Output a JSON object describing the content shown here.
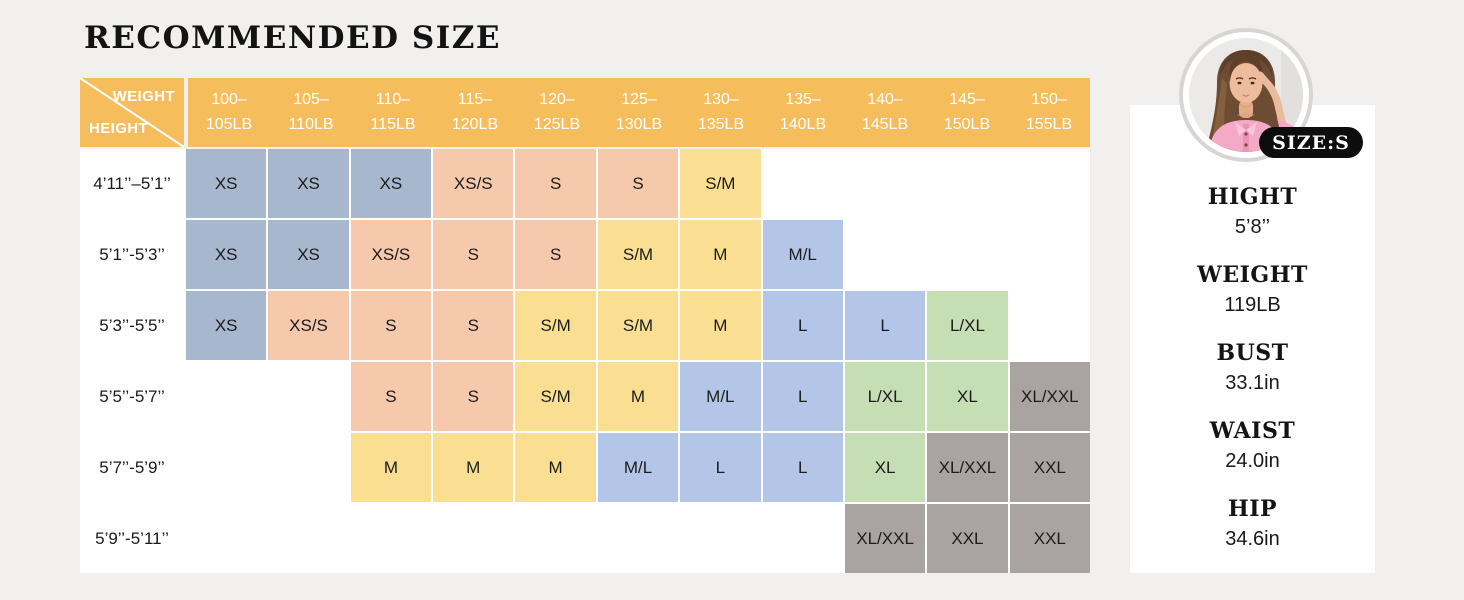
{
  "page": {
    "title": "RECOMMENDED SIZE"
  },
  "palette": {
    "page_bg": "#F1F0EE",
    "header_orange": "#F6BD5C",
    "blue": "#A7B8CE",
    "peach": "#F6C9AC",
    "yellow": "#FADF92",
    "periwinkle": "#B4C6E8",
    "green": "#C5DEB4",
    "gray": "#A9A4A1",
    "badge_black": "#0D0D0D",
    "card_white": "#FFFFFF"
  },
  "chart_data": {
    "type": "table",
    "title": "RECOMMENDED SIZE",
    "column_axis": "WEIGHT",
    "row_axis": "HEIGHT",
    "columns": [
      "100–105LB",
      "105–110LB",
      "110–115LB",
      "115–120LB",
      "120–125LB",
      "125–130LB",
      "130–135LB",
      "135–140LB",
      "140–145LB",
      "145–150LB",
      "150–155LB"
    ],
    "rows": [
      "4’11’’–5’1’’",
      "5’1’’-5’3’’",
      "5’3’’-5’5’’",
      "5’5’’-5’7’’",
      "5’7’’-5’9’’",
      "5’9’’-5’11’’"
    ],
    "cells": [
      [
        {
          "size": "XS",
          "color": "blue"
        },
        {
          "size": "XS",
          "color": "blue"
        },
        {
          "size": "XS",
          "color": "blue"
        },
        {
          "size": "XS/S",
          "color": "peach"
        },
        {
          "size": "S",
          "color": "peach"
        },
        {
          "size": "S",
          "color": "peach"
        },
        {
          "size": "S/M",
          "color": "yellow"
        },
        null,
        null,
        null,
        null
      ],
      [
        {
          "size": "XS",
          "color": "blue"
        },
        {
          "size": "XS",
          "color": "blue"
        },
        {
          "size": "XS/S",
          "color": "peach"
        },
        {
          "size": "S",
          "color": "peach"
        },
        {
          "size": "S",
          "color": "peach"
        },
        {
          "size": "S/M",
          "color": "yellow"
        },
        {
          "size": "M",
          "color": "yellow"
        },
        {
          "size": "M/L",
          "color": "periwinkle"
        },
        null,
        null,
        null
      ],
      [
        {
          "size": "XS",
          "color": "blue"
        },
        {
          "size": "XS/S",
          "color": "peach"
        },
        {
          "size": "S",
          "color": "peach"
        },
        {
          "size": "S",
          "color": "peach"
        },
        {
          "size": "S/M",
          "color": "yellow"
        },
        {
          "size": "S/M",
          "color": "yellow"
        },
        {
          "size": "M",
          "color": "yellow"
        },
        {
          "size": "L",
          "color": "periwinkle"
        },
        {
          "size": "L",
          "color": "periwinkle"
        },
        {
          "size": "L/XL",
          "color": "green"
        },
        null
      ],
      [
        null,
        null,
        {
          "size": "S",
          "color": "peach"
        },
        {
          "size": "S",
          "color": "peach"
        },
        {
          "size": "S/M",
          "color": "yellow"
        },
        {
          "size": "M",
          "color": "yellow"
        },
        {
          "size": "M/L",
          "color": "periwinkle"
        },
        {
          "size": "L",
          "color": "periwinkle"
        },
        {
          "size": "L/XL",
          "color": "green"
        },
        {
          "size": "XL",
          "color": "green"
        },
        {
          "size": "XL/XXL",
          "color": "gray"
        }
      ],
      [
        null,
        null,
        {
          "size": "M",
          "color": "yellow"
        },
        {
          "size": "M",
          "color": "yellow"
        },
        {
          "size": "M",
          "color": "yellow"
        },
        {
          "size": "M/L",
          "color": "periwinkle"
        },
        {
          "size": "L",
          "color": "periwinkle"
        },
        {
          "size": "L",
          "color": "periwinkle"
        },
        {
          "size": "XL",
          "color": "green"
        },
        {
          "size": "XL/XXL",
          "color": "gray"
        },
        {
          "size": "XXL",
          "color": "gray"
        }
      ],
      [
        null,
        null,
        null,
        null,
        null,
        null,
        null,
        null,
        {
          "size": "XL/XXL",
          "color": "gray"
        },
        {
          "size": "XXL",
          "color": "gray"
        },
        {
          "size": "XXL",
          "color": "gray"
        }
      ]
    ]
  },
  "model_card": {
    "size_badge": "SIZE:S",
    "measurements": [
      {
        "label": "HIGHT",
        "value": "5’8’’"
      },
      {
        "label": "WEIGHT",
        "value": "119LB"
      },
      {
        "label": "BUST",
        "value": "33.1in"
      },
      {
        "label": "WAIST",
        "value": "24.0in"
      },
      {
        "label": "HIP",
        "value": "34.6in"
      }
    ]
  }
}
